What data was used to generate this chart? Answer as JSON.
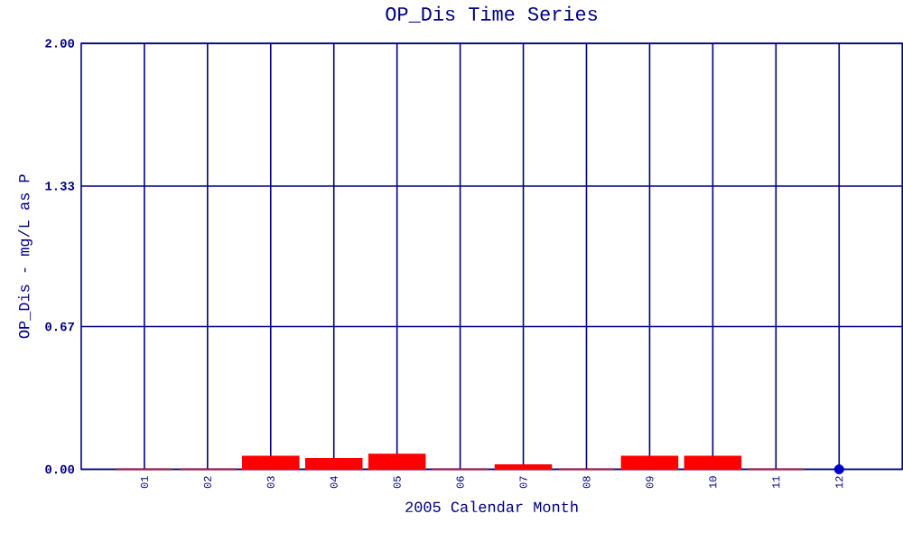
{
  "chart_data": {
    "type": "bar",
    "title": "OP_Dis Time Series",
    "xlabel": "2005 Calendar Month",
    "ylabel": "OP_Dis - mg/L as P",
    "categories": [
      "01",
      "02",
      "03",
      "04",
      "05",
      "06",
      "07",
      "08",
      "09",
      "10",
      "11",
      "12"
    ],
    "series": [
      {
        "color": "#ff0000",
        "values": [
          0,
          0,
          0.06,
          0.05,
          0.07,
          0,
          0.02,
          0,
          0.06,
          0.06,
          0,
          null
        ]
      },
      {
        "type": "scatter",
        "color": "#0000cc",
        "x": [
          "12"
        ],
        "values": [
          0
        ]
      }
    ],
    "ylim": [
      0,
      2
    ],
    "yticks": [
      {
        "value": 0,
        "label": "0.00"
      },
      {
        "value": 0.67,
        "label": "0.67"
      },
      {
        "value": 1.33,
        "label": "1.33"
      },
      {
        "value": 2,
        "label": "2.00"
      }
    ],
    "grid": true
  }
}
